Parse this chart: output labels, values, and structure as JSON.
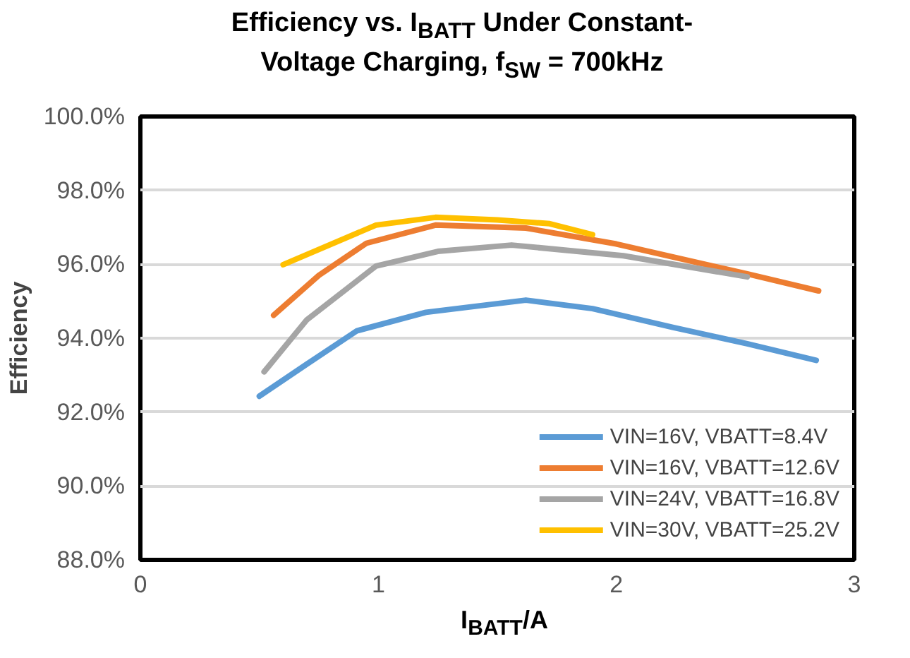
{
  "chart_data": {
    "type": "line",
    "title": "Efficiency vs. I$_{BATT}$ Under Constant-Voltage Charging, f$_{SW}$ = 700kHz",
    "xlabel": "I$_{BATT}$/A",
    "ylabel": "Efficiency",
    "xlim": [
      0,
      3
    ],
    "xticks": [
      0,
      1,
      2,
      3
    ],
    "ylim": [
      88,
      100
    ],
    "yticks": [
      {
        "value": 88,
        "label": "88.0%"
      },
      {
        "value": 90,
        "label": "90.0%"
      },
      {
        "value": 92,
        "label": "92.0%"
      },
      {
        "value": 94,
        "label": "94.0%"
      },
      {
        "value": 96,
        "label": "96.0%"
      },
      {
        "value": 98,
        "label": "98.0%"
      },
      {
        "value": 100,
        "label": "100.0%"
      }
    ],
    "grid": "y",
    "legend": "bottom right",
    "marker": "none",
    "line_style": "solid",
    "series": [
      {
        "name": "VIN=16V, VBATT=8.4V",
        "color": "#5b9bd5",
        "x": [
          0.5,
          0.7,
          0.91,
          1.2,
          1.62,
          1.9,
          2.24,
          2.55,
          2.84
        ],
        "values": [
          92.43,
          93.3,
          94.2,
          94.7,
          95.03,
          94.8,
          94.29,
          93.85,
          93.4
        ]
      },
      {
        "name": "VIN=16V, VBATT=12.6V",
        "color": "#ed7d31",
        "x": [
          0.56,
          0.75,
          0.95,
          1.24,
          1.62,
          2.0,
          2.55,
          2.85
        ],
        "values": [
          94.62,
          95.7,
          96.57,
          97.06,
          96.98,
          96.55,
          95.74,
          95.28
        ]
      },
      {
        "name": "VIN=24V, VBATT=16.8V",
        "color": "#a5a5a5",
        "x": [
          0.52,
          0.7,
          0.99,
          1.25,
          1.56,
          2.03,
          2.55
        ],
        "values": [
          93.09,
          94.5,
          95.95,
          96.35,
          96.52,
          96.23,
          95.66
        ]
      },
      {
        "name": "VIN=30V, VBATT=25.2V",
        "color": "#ffc000",
        "x": [
          0.6,
          0.99,
          1.24,
          1.5,
          1.72,
          1.9
        ],
        "values": [
          95.99,
          97.06,
          97.27,
          97.2,
          97.1,
          96.8
        ]
      }
    ]
  }
}
